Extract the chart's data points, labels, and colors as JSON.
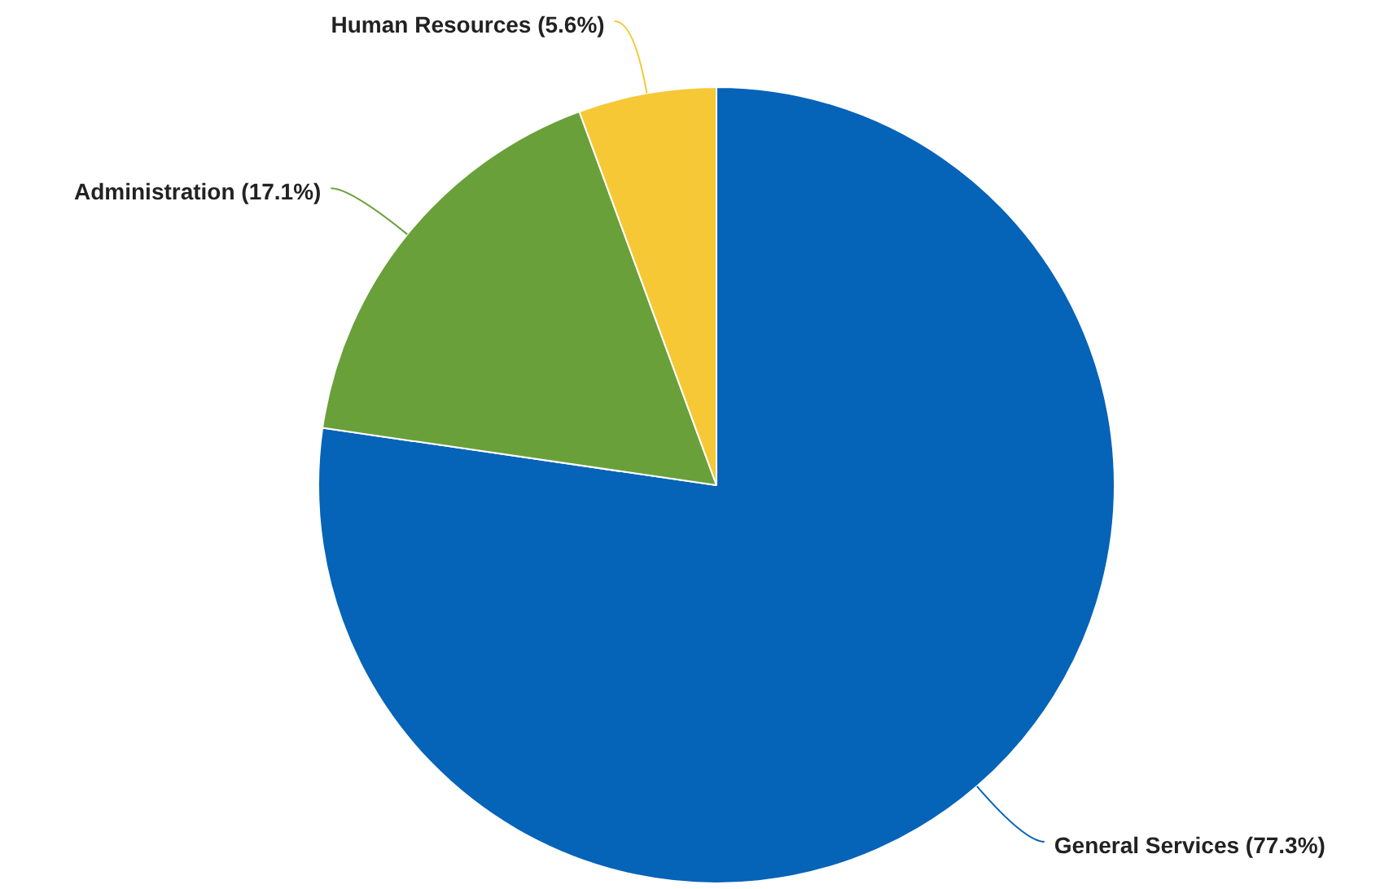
{
  "chart_data": {
    "type": "pie",
    "categories": [
      "General Services (77.3%)",
      "Administration (17.1%)",
      "Human Resources (5.6%)"
    ],
    "values": [
      77.3,
      17.1,
      5.6
    ],
    "colors": [
      "#0563b8",
      "#6aa03a",
      "#f6c836"
    ],
    "legend": false
  }
}
